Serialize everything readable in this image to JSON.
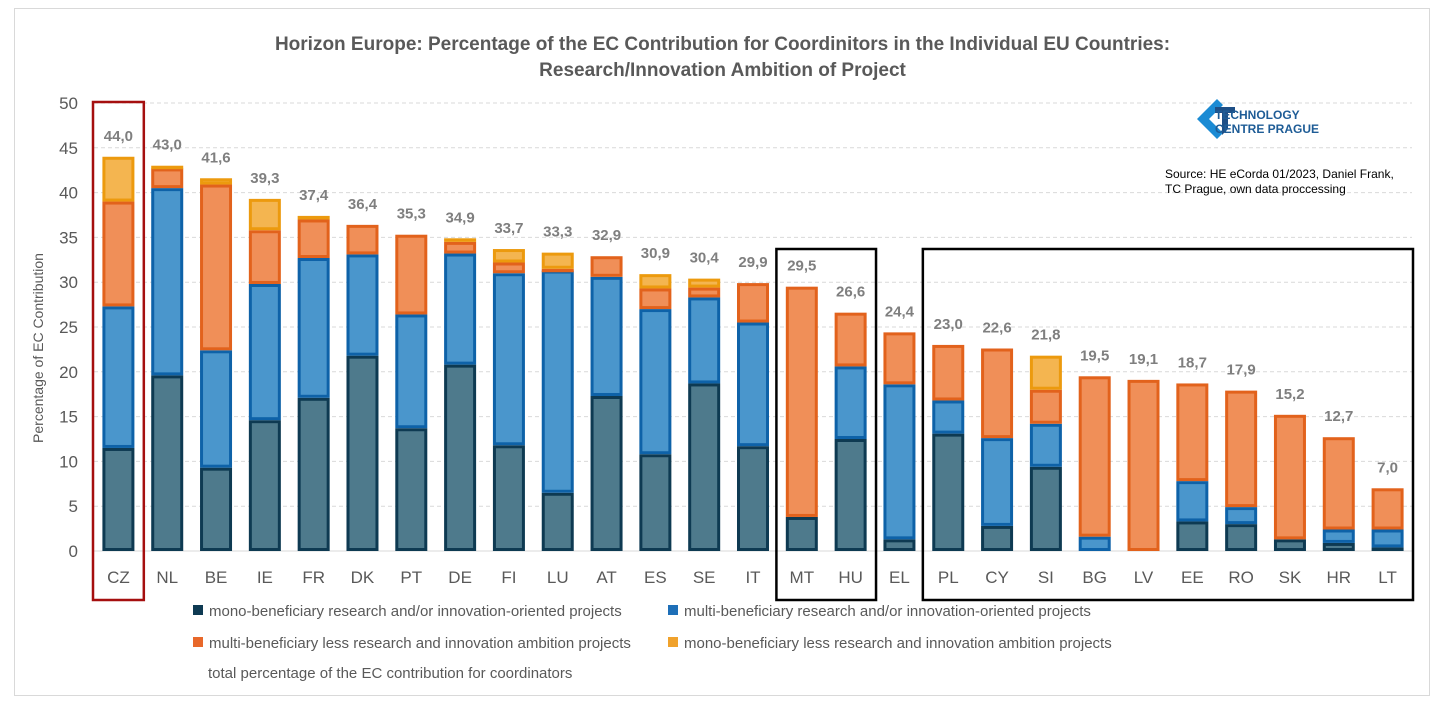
{
  "chart_data": {
    "type": "bar",
    "stacked": true,
    "title": "Horizon Europe: Percentage of the EC Contribution for Coordinitors in the Individual EU Countries:",
    "subtitle": "Research/Innovation Ambition of Project",
    "xlabel": "",
    "ylabel": "Percentage of EC Contribution",
    "ylim": [
      0,
      50
    ],
    "yticks": [
      0,
      5,
      10,
      15,
      20,
      25,
      30,
      35,
      40,
      45,
      50
    ],
    "grid": true,
    "legend_position": "bottom",
    "categories": [
      "CZ",
      "NL",
      "BE",
      "IE",
      "FR",
      "DK",
      "PT",
      "DE",
      "FI",
      "LU",
      "AT",
      "ES",
      "SE",
      "IT",
      "MT",
      "HU",
      "EL",
      "PL",
      "CY",
      "SI",
      "BG",
      "LV",
      "EE",
      "RO",
      "SK",
      "HR",
      "LT"
    ],
    "series": [
      {
        "name": "mono-beneficiary research and/or innovation-oriented projects",
        "color": "#4e7a8c",
        "border": "#0e3a52",
        "values": [
          11.5,
          19.6,
          9.3,
          14.6,
          17.1,
          21.8,
          13.7,
          20.8,
          11.8,
          6.5,
          17.3,
          10.8,
          18.7,
          11.7,
          3.8,
          12.5,
          1.3,
          13.1,
          2.8,
          9.4,
          0,
          0,
          3.3,
          3.0,
          1.3,
          0.9,
          0.4
        ]
      },
      {
        "name": "multi-beneficiary research and/or innovation-oriented projects",
        "color": "#4a96cc",
        "border": "#0e62a8",
        "values": [
          15.8,
          20.9,
          13.1,
          15.2,
          15.6,
          11.3,
          12.7,
          12.4,
          19.2,
          24.8,
          13.3,
          16.2,
          9.6,
          13.8,
          0,
          8.1,
          17.3,
          3.7,
          9.8,
          4.8,
          1.6,
          0,
          4.5,
          1.9,
          0,
          1.5,
          2.0
        ]
      },
      {
        "name": "multi-beneficiary  less research and innovation ambition projects",
        "color": "#f08f58",
        "border": "#e2621c",
        "values": [
          11.7,
          2.2,
          18.5,
          6.0,
          4.3,
          3.3,
          8.9,
          1.3,
          1.2,
          0.2,
          2.3,
          2.3,
          1.1,
          4.4,
          25.7,
          6.0,
          5.8,
          6.2,
          10.0,
          3.8,
          17.9,
          19.1,
          10.9,
          13.0,
          13.9,
          10.3,
          4.6
        ]
      },
      {
        "name": "mono-beneficiary   less research and innovation ambition projects",
        "color": "#f4b550",
        "border": "#ec9a0e",
        "values": [
          5.0,
          0.3,
          0.7,
          3.5,
          0.4,
          0,
          0,
          0.4,
          1.5,
          1.8,
          0,
          1.6,
          1.0,
          0,
          0,
          0,
          0,
          0,
          0,
          3.8,
          0,
          0,
          0,
          0,
          0,
          0,
          0
        ]
      }
    ],
    "totals": {
      "name": "total percentage of the EC contribution for coordinators",
      "values": [
        44.0,
        43.0,
        41.6,
        39.3,
        37.4,
        36.4,
        35.3,
        34.9,
        33.7,
        33.3,
        32.9,
        30.9,
        30.4,
        29.9,
        29.5,
        26.6,
        24.4,
        23.0,
        22.6,
        21.8,
        19.5,
        19.1,
        18.7,
        17.9,
        15.2,
        12.7,
        7.0
      ],
      "labels": [
        "44,0",
        "43,0",
        "41,6",
        "39,3",
        "37,4",
        "36,4",
        "35,3",
        "34,9",
        "33,7",
        "33,3",
        "32,9",
        "30,9",
        "30,4",
        "29,9",
        "29,5",
        "26,6",
        "24,4",
        "23,0",
        "22,6",
        "21,8",
        "19,5",
        "19,1",
        "18,7",
        "17,9",
        "15,2",
        "12,7",
        "7,0"
      ]
    },
    "highlight_groups": [
      {
        "countries": [
          "CZ"
        ],
        "color": "#a50f0f"
      },
      {
        "countries": [
          "MT",
          "HU"
        ],
        "color": "#000000"
      },
      {
        "countries": [
          "PL",
          "CY",
          "SI",
          "BG",
          "LV",
          "EE",
          "RO",
          "SK",
          "HR",
          "LT"
        ],
        "color": "#000000"
      }
    ]
  },
  "logo": {
    "line1": "TECHNOLOGY",
    "line2": "CENTRE PRAGUE"
  },
  "source": "Source: HE eCorda 01/2023, Daniel Frank, TC Prague, own data proccessing"
}
